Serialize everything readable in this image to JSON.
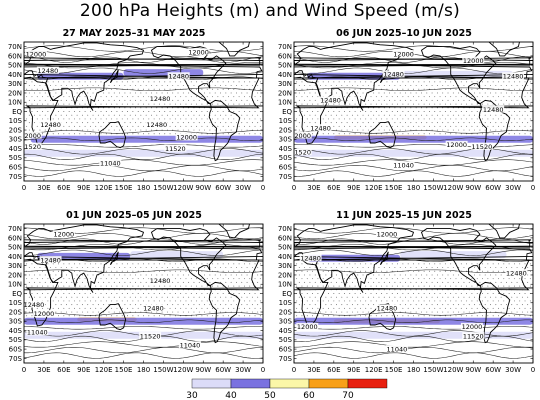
{
  "title": "200 hPa Heights (m) and Wind Speed (m/s)",
  "chart_data": {
    "type": "contour_map",
    "variable": "200 hPa geopotential heights (contours, m) with wind speed shading (m/s)",
    "colorbar": {
      "ticks": [
        30,
        40,
        50,
        60,
        70
      ],
      "bins": [
        {
          "from": 30,
          "to": 40,
          "color": "#dcdcf8"
        },
        {
          "from": 40,
          "to": 50,
          "color": "#7a72e0"
        },
        {
          "from": 50,
          "to": 60,
          "color": "#fbf7a8"
        },
        {
          "from": 60,
          "to": 70,
          "color": "#f8a018"
        },
        {
          "from": 70,
          "to": 80,
          "color": "#e82010"
        }
      ]
    },
    "panels": [
      {
        "title": "27 MAY 2025–31 MAY 2025",
        "position": "top-left",
        "lat_ticks": [
          "70N",
          "60N",
          "50N",
          "40N",
          "30N",
          "20N",
          "10N",
          "EQ",
          "10S",
          "20S",
          "30S",
          "40S",
          "50S",
          "60S",
          "70S"
        ],
        "lon_ticks": [
          "0",
          "30E",
          "60E",
          "90E",
          "120E",
          "150E",
          "180",
          "150W",
          "120W",
          "90W",
          "60W",
          "30W",
          "0"
        ],
        "contour_labels": [
          {
            "text": "12000",
            "lon": 18,
            "lat": 62
          },
          {
            "text": "12000",
            "lon": 263,
            "lat": 64
          },
          {
            "text": "12480",
            "lon": 36,
            "lat": 44
          },
          {
            "text": "12480",
            "lon": 233,
            "lat": 38
          },
          {
            "text": "12480",
            "lon": 205,
            "lat": 14
          },
          {
            "text": "12480",
            "lon": 40,
            "lat": -14
          },
          {
            "text": "12480",
            "lon": 200,
            "lat": -14
          },
          {
            "text": "12000",
            "lon": 10,
            "lat": -26
          },
          {
            "text": "12000",
            "lon": 245,
            "lat": -28
          },
          {
            "text": "11520",
            "lon": 10,
            "lat": -38
          },
          {
            "text": "11520",
            "lon": 228,
            "lat": -40
          },
          {
            "text": "11040",
            "lon": 130,
            "lat": -56
          }
        ],
        "jets": [
          {
            "lat": 38,
            "lon_from": 20,
            "lon_to": 150,
            "speed_class": 40
          },
          {
            "lat": 42,
            "lon_from": 150,
            "lon_to": 270,
            "speed_class": 40
          },
          {
            "lat": -30,
            "lon_from": 10,
            "lon_to": 360,
            "speed_class": 40
          },
          {
            "lat": -45,
            "lon_from": 0,
            "lon_to": 360,
            "speed_class": 30
          }
        ]
      },
      {
        "title": "06 JUN 2025–10 JUN 2025",
        "position": "top-right",
        "lat_ticks": [
          "70N",
          "60N",
          "50N",
          "40N",
          "30N",
          "20N",
          "10N",
          "EQ",
          "10S",
          "20S",
          "30S",
          "40S",
          "50S",
          "60S",
          "70S"
        ],
        "lon_ticks": [
          "0",
          "30E",
          "60E",
          "90E",
          "120E",
          "150E",
          "180",
          "150W",
          "120W",
          "90W",
          "60W",
          "30W",
          "0"
        ],
        "contour_labels": [
          {
            "text": "12000",
            "lon": 165,
            "lat": 62
          },
          {
            "text": "12000",
            "lon": 270,
            "lat": 55
          },
          {
            "text": "12480",
            "lon": 150,
            "lat": 40
          },
          {
            "text": "12480",
            "lon": 330,
            "lat": 38
          },
          {
            "text": "12480",
            "lon": 55,
            "lat": 12
          },
          {
            "text": "12480",
            "lon": 300,
            "lat": 2
          },
          {
            "text": "12480",
            "lon": 40,
            "lat": -18
          },
          {
            "text": "12000",
            "lon": 10,
            "lat": -26
          },
          {
            "text": "12000",
            "lon": 245,
            "lat": -36
          },
          {
            "text": "11520",
            "lon": 10,
            "lat": -44
          },
          {
            "text": "11520",
            "lon": 283,
            "lat": -38
          },
          {
            "text": "11040",
            "lon": 165,
            "lat": -58
          }
        ],
        "jets": [
          {
            "lat": 38,
            "lon_from": 20,
            "lon_to": 160,
            "speed_class": 40
          },
          {
            "lat": 40,
            "lon_from": 160,
            "lon_to": 330,
            "speed_class": 30
          },
          {
            "lat": -28,
            "lon_from": 60,
            "lon_to": 200,
            "speed_class": 60
          },
          {
            "lat": -30,
            "lon_from": 0,
            "lon_to": 360,
            "speed_class": 40
          },
          {
            "lat": -45,
            "lon_from": 0,
            "lon_to": 360,
            "speed_class": 30
          }
        ]
      },
      {
        "title": "01 JUN 2025–05 JUN 2025",
        "position": "bottom-left",
        "lat_ticks": [
          "70N",
          "60N",
          "50N",
          "40N",
          "30N",
          "20N",
          "10N",
          "EQ",
          "10S",
          "20S",
          "30S",
          "40S",
          "50S",
          "60S",
          "70S"
        ],
        "lon_ticks": [
          "0",
          "30E",
          "60E",
          "90E",
          "120E",
          "150E",
          "180",
          "150W",
          "120W",
          "90W",
          "60W",
          "30W",
          "0"
        ],
        "contour_labels": [
          {
            "text": "12000",
            "lon": 60,
            "lat": 64
          },
          {
            "text": "12480",
            "lon": 40,
            "lat": 36
          },
          {
            "text": "12480",
            "lon": 205,
            "lat": 14
          },
          {
            "text": "12480",
            "lon": 15,
            "lat": -12
          },
          {
            "text": "12480",
            "lon": 195,
            "lat": -16
          },
          {
            "text": "12000",
            "lon": 30,
            "lat": -22
          },
          {
            "text": "11520",
            "lon": 190,
            "lat": -46
          },
          {
            "text": "11040",
            "lon": 20,
            "lat": -42
          },
          {
            "text": "11040",
            "lon": 250,
            "lat": -56
          }
        ],
        "jets": [
          {
            "lat": 40,
            "lon_from": 20,
            "lon_to": 160,
            "speed_class": 40
          },
          {
            "lat": 42,
            "lon_from": 160,
            "lon_to": 300,
            "speed_class": 30
          },
          {
            "lat": -28,
            "lon_from": 80,
            "lon_to": 170,
            "speed_class": 60
          },
          {
            "lat": -30,
            "lon_from": 0,
            "lon_to": 360,
            "speed_class": 40
          },
          {
            "lat": -45,
            "lon_from": 0,
            "lon_to": 360,
            "speed_class": 30
          }
        ]
      },
      {
        "title": "11 JUN 2025–15 JUN 2025",
        "position": "bottom-right",
        "lat_ticks": [
          "70N",
          "60N",
          "50N",
          "40N",
          "30N",
          "20N",
          "10N",
          "EQ",
          "10S",
          "20S",
          "30S",
          "40S",
          "50S",
          "60S",
          "70S"
        ],
        "lon_ticks": [
          "0",
          "30E",
          "60E",
          "90E",
          "120E",
          "150E",
          "180",
          "150W",
          "120W",
          "90W",
          "60W",
          "30W",
          "0"
        ],
        "contour_labels": [
          {
            "text": "12000",
            "lon": 140,
            "lat": 64
          },
          {
            "text": "12480",
            "lon": 25,
            "lat": 38
          },
          {
            "text": "12480",
            "lon": 335,
            "lat": 22
          },
          {
            "text": "12480",
            "lon": 140,
            "lat": -16
          },
          {
            "text": "12000",
            "lon": 20,
            "lat": -36
          },
          {
            "text": "12000",
            "lon": 268,
            "lat": -36
          },
          {
            "text": "11520",
            "lon": 270,
            "lat": -46
          },
          {
            "text": "11040",
            "lon": 155,
            "lat": -60
          }
        ],
        "jets": [
          {
            "lat": 38,
            "lon_from": 20,
            "lon_to": 160,
            "speed_class": 40
          },
          {
            "lat": 42,
            "lon_from": 160,
            "lon_to": 320,
            "speed_class": 30
          },
          {
            "lat": -30,
            "lon_from": 60,
            "lon_to": 220,
            "speed_class": 60
          },
          {
            "lat": -30,
            "lon_from": 0,
            "lon_to": 360,
            "speed_class": 40
          },
          {
            "lat": -45,
            "lon_from": 0,
            "lon_to": 360,
            "speed_class": 30
          }
        ]
      }
    ]
  }
}
